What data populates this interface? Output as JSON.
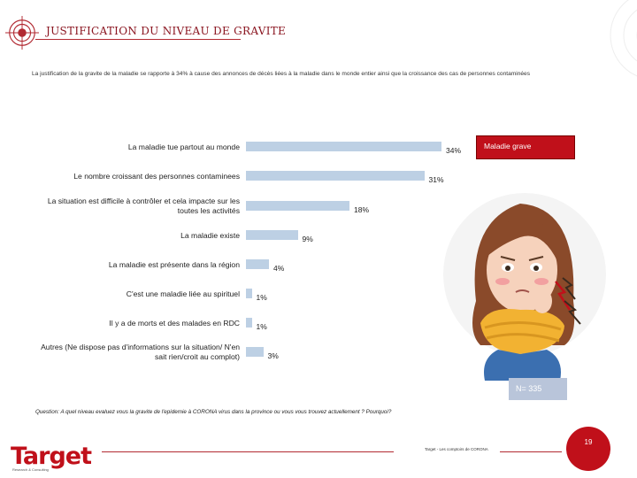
{
  "header": {
    "title": "JUSTIFICATION DU NIVEAU DE GRAVITE",
    "intro": "La justification de la gravite de la maladie se rapporte à 34% à cause des annonces de décès liées à la maladie dans le monde entier ainsi que la croissance des cas de personnes contaminées"
  },
  "legend": {
    "label": "Maladie grave",
    "color": "#c0101a"
  },
  "sample": {
    "label": "N= 335"
  },
  "question": "Question: A quel niveau evaluez vous la gravite de l'epidemie à CORONA virus dans la province ou vous vous trouvez actuellement ? Pourquoi?",
  "footer": {
    "note": "Target - Les comptoirs de CORONA",
    "page": "19",
    "brand": "Target",
    "brand_sub": "Research & Consulting"
  },
  "chart_data": {
    "type": "bar",
    "orientation": "horizontal",
    "categories": [
      [
        "La maladie tue partout au monde"
      ],
      [
        "Le nombre croissant des personnes contaminees"
      ],
      [
        "La situation est difficile à contrôler et cela impacte sur les",
        "toutes les activités"
      ],
      [
        "La maladie existe"
      ],
      [
        "La maladie est présente dans la région"
      ],
      [
        "C'est une maladie liée au spirituel"
      ],
      [
        "Il y a de morts et des malades en RDC"
      ],
      [
        "Autres (Ne dispose pas d'informations sur la situation/ N'en",
        "sait rien/croit au complot)"
      ]
    ],
    "values": [
      34,
      31,
      18,
      9,
      4,
      1,
      1,
      3
    ],
    "value_labels": [
      "34%",
      "31%",
      "18%",
      "9%",
      "4%",
      "1%",
      "1%",
      "3%"
    ],
    "unit": "%",
    "series": [
      {
        "name": "Maladie grave",
        "values": [
          34,
          31,
          18,
          9,
          4,
          1,
          1,
          3
        ]
      }
    ],
    "bar_color": "#bdd0e4",
    "xlim": [
      0,
      36
    ],
    "grid": false,
    "legend": "top-right"
  }
}
